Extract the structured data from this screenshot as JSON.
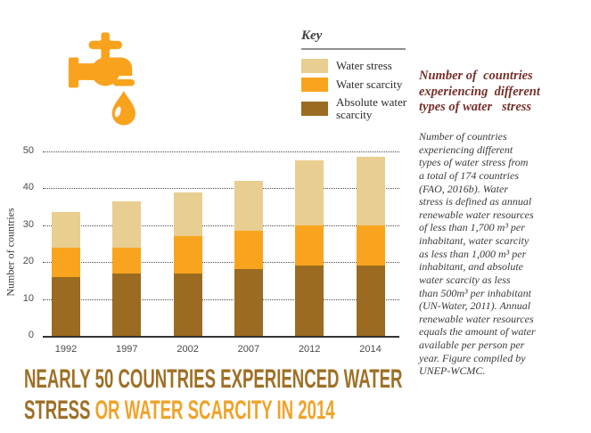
{
  "figure": {
    "icon": {
      "name": "water-tap-with-drop",
      "color": "#f9a21e"
    },
    "key": {
      "title": "Key",
      "items": [
        {
          "label": "Water stress",
          "color": "#e8ce90"
        },
        {
          "label": "Water scarcity",
          "color": "#f9a41e"
        },
        {
          "label": "Absolute water scarcity",
          "color": "#9a6b20"
        }
      ]
    },
    "sidebar": {
      "title": "Number of  countries\nexperiencing  different\ntypes of water   stress",
      "title_color": "#76302a",
      "body": "Number of countries\nexperiencing different\ntypes of water stress from\na total of 174 countries\n(FAO, 2016b). Water\nstress is defined as annual\nrenewable water resources\nof less than 1,700 m³ per\ninhabitant, water scarcity\nas less than 1,000 m³ per\ninhabitant, and absolute\nwater scarcity as less\nthan 500m³ per inhabitant\n(UN-Water, 2011). Annual\nrenewable water resources\nequals the amount of water\navailable per person per\nyear. Figure compiled by\nUNEP-WCMC."
    },
    "headline": {
      "line1": "NEARLY 50 COUNTRIES EXPERIENCED WATER",
      "line2_part1": "STRESS ",
      "line2_part2": "OR WATER SCARCITY IN 2014",
      "color_primary": "#9e7026",
      "color_accent": "#efa32a"
    }
  },
  "chart_data": {
    "type": "bar",
    "stacked": true,
    "title": "Number of countries experiencing different types of water stress",
    "categories": [
      "1992",
      "1997",
      "2002",
      "2007",
      "2012",
      "2014"
    ],
    "series": [
      {
        "name": "Absolute water scarcity",
        "color": "#9a6b20",
        "values": [
          16,
          17,
          17,
          18,
          19,
          19
        ]
      },
      {
        "name": "Water scarcity",
        "color": "#f9a41e",
        "values": [
          8,
          7,
          10,
          10.5,
          11,
          11
        ]
      },
      {
        "name": "Water stress",
        "color": "#e8ce90",
        "values": [
          9.5,
          12.5,
          12,
          13.5,
          17.5,
          18.5
        ]
      }
    ],
    "totals": [
      33.5,
      36.5,
      39,
      42,
      47.5,
      48.5
    ],
    "xlabel": "",
    "ylabel": "Number of countries",
    "ylim": [
      0,
      50
    ],
    "yticks": [
      0,
      10,
      20,
      30,
      40,
      50
    ],
    "grid": "dotted-horizontal",
    "legend_position": "top-right"
  }
}
